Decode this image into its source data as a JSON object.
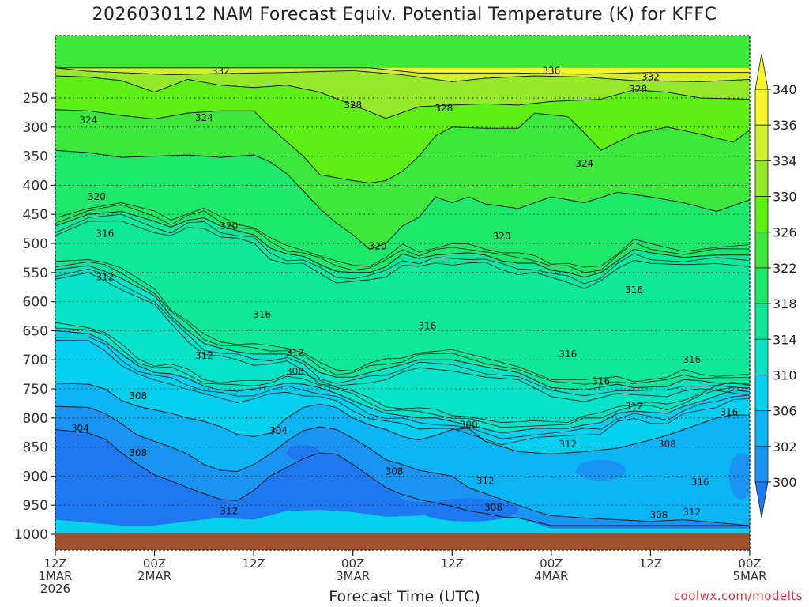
{
  "chart_data": {
    "type": "heatmap",
    "title": "2026030112 NAM Forecast Equiv. Potential Temperature (K) for KFFC",
    "xlabel": "Forecast Time (UTC)",
    "ylabel": "",
    "y_axis": {
      "ticks": [
        250,
        300,
        350,
        400,
        450,
        500,
        550,
        600,
        650,
        700,
        750,
        800,
        850,
        900,
        950,
        1000
      ],
      "range": [
        200,
        1050
      ]
    },
    "x_axis": {
      "range_hours": [
        0,
        84
      ],
      "ticks": [
        {
          "hour": 0,
          "lines": [
            "12Z",
            "1MAR",
            "2026"
          ]
        },
        {
          "hour": 12,
          "lines": [
            "00Z",
            "2MAR"
          ]
        },
        {
          "hour": 24,
          "lines": [
            "12Z"
          ]
        },
        {
          "hour": 36,
          "lines": [
            "00Z",
            "3MAR"
          ]
        },
        {
          "hour": 48,
          "lines": [
            "12Z"
          ]
        },
        {
          "hour": 60,
          "lines": [
            "00Z",
            "4MAR"
          ]
        },
        {
          "hour": 72,
          "lines": [
            "12Z"
          ]
        },
        {
          "hour": 84,
          "lines": [
            "00Z",
            "5MAR"
          ]
        }
      ]
    },
    "colorbar": {
      "labels": [
        340,
        336,
        334,
        330,
        326,
        322,
        318,
        314,
        310,
        306,
        302,
        300
      ],
      "levels": [
        300,
        302,
        306,
        310,
        314,
        318,
        322,
        326,
        330,
        334,
        336,
        340
      ]
    },
    "colors": {
      "300": "#1e78f0",
      "302": "#1a94f2",
      "306": "#0ab4f5",
      "310": "#06d0f0",
      "314": "#07e3c7",
      "318": "#0fe89a",
      "322": "#1ee86a",
      "326": "#3ce83c",
      "330": "#5ef014",
      "334": "#96e82a",
      "336": "#d0f030",
      "340": "#f5f52a",
      "ground": "#a0522d"
    },
    "contour_labels": [
      {
        "hour": 20,
        "p": 204,
        "text": "332"
      },
      {
        "hour": 60,
        "p": 203,
        "text": "336"
      },
      {
        "hour": 72,
        "p": 214,
        "text": "332"
      },
      {
        "hour": 70.5,
        "p": 235,
        "text": "328"
      },
      {
        "hour": 36,
        "p": 262,
        "text": "328"
      },
      {
        "hour": 47,
        "p": 268,
        "text": "328"
      },
      {
        "hour": 4,
        "p": 288,
        "text": "324"
      },
      {
        "hour": 18,
        "p": 284,
        "text": "324"
      },
      {
        "hour": 64,
        "p": 363,
        "text": "324"
      },
      {
        "hour": 5,
        "p": 420,
        "text": "320"
      },
      {
        "hour": 21,
        "p": 470,
        "text": "320"
      },
      {
        "hour": 39,
        "p": 505,
        "text": "320"
      },
      {
        "hour": 54,
        "p": 488,
        "text": "320"
      },
      {
        "hour": 6,
        "p": 483,
        "text": "316"
      },
      {
        "hour": 6,
        "p": 558,
        "text": "312"
      },
      {
        "hour": 25,
        "p": 622,
        "text": "316"
      },
      {
        "hour": 45,
        "p": 642,
        "text": "316"
      },
      {
        "hour": 70,
        "p": 580,
        "text": "316"
      },
      {
        "hour": 62,
        "p": 690,
        "text": "316"
      },
      {
        "hour": 77,
        "p": 700,
        "text": "316"
      },
      {
        "hour": 66,
        "p": 737,
        "text": "316"
      },
      {
        "hour": 18,
        "p": 693,
        "text": "312"
      },
      {
        "hour": 29,
        "p": 688,
        "text": "312"
      },
      {
        "hour": 29,
        "p": 720,
        "text": "308"
      },
      {
        "hour": 10,
        "p": 762,
        "text": "308"
      },
      {
        "hour": 3,
        "p": 818,
        "text": "304"
      },
      {
        "hour": 27,
        "p": 822,
        "text": "304"
      },
      {
        "hour": 10,
        "p": 860,
        "text": "308"
      },
      {
        "hour": 50,
        "p": 812,
        "text": "308"
      },
      {
        "hour": 41,
        "p": 892,
        "text": "308"
      },
      {
        "hour": 62,
        "p": 845,
        "text": "312"
      },
      {
        "hour": 70,
        "p": 780,
        "text": "312"
      },
      {
        "hour": 74,
        "p": 845,
        "text": "308"
      },
      {
        "hour": 81.5,
        "p": 790,
        "text": "316"
      },
      {
        "hour": 52,
        "p": 908,
        "text": "312"
      },
      {
        "hour": 21,
        "p": 960,
        "text": "312"
      },
      {
        "hour": 53,
        "p": 954,
        "text": "308"
      },
      {
        "hour": 73,
        "p": 967,
        "text": "308"
      },
      {
        "hour": 77,
        "p": 962,
        "text": "312"
      },
      {
        "hour": 78,
        "p": 910,
        "text": "316"
      }
    ]
  },
  "credit": "coolwx.com/modelts"
}
